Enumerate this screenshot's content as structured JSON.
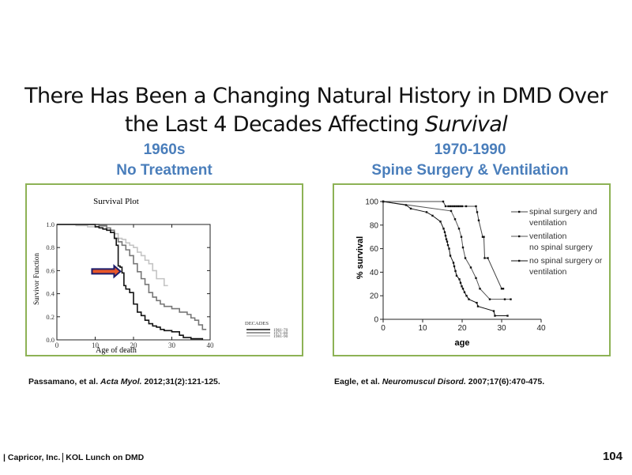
{
  "slide": {
    "title_line1": "There Has Been a Changing Natural History in DMD Over",
    "title_line2_prefix": "the Last 4 Decades Affecting ",
    "title_line2_italic": "Survival",
    "left_heading": {
      "line1": "1960s",
      "line2": "No Treatment"
    },
    "right_heading": {
      "line1": "1970-1990",
      "line2": "Spine Surgery & Ventilation"
    },
    "left_citation": {
      "authors": "Passamano, et al. ",
      "journal": "Acta Myol.",
      "details": " 2012;31(2):121-125."
    },
    "right_citation": {
      "authors": "Eagle, et al.  ",
      "journal": "Neuromuscul Disord.",
      "details": " 2007;17(6):470-475."
    },
    "footer": {
      "company": "| Capricor, Inc. ",
      "event": "KOL Lunch on DMD",
      "page_number": "104"
    },
    "colors": {
      "heading_blue": "#4a7ebb",
      "panel_border": "#8db255",
      "arrow_fill": "#e8572a",
      "arrow_outline": "#1d1d6b"
    }
  },
  "chart_data": [
    {
      "type": "line",
      "style": "step",
      "title": "Survival Plot",
      "xlabel": "Age of death",
      "ylabel": "Survivor Function",
      "xlim": [
        0,
        40
      ],
      "ylim": [
        0,
        1.0
      ],
      "xticks": [
        "0",
        "10",
        "20",
        "30",
        "40"
      ],
      "yticks": [
        "0.0",
        "0.2",
        "0.4",
        "0.6",
        "0.8",
        "1.0"
      ],
      "legend_title": "DECADES",
      "legend_position": "bottom-right-outside",
      "annotation": {
        "type": "arrow",
        "points_to": [
          17,
          0.58
        ]
      },
      "series": [
        {
          "name": "1961-70",
          "color": "#111111",
          "x": [
            0,
            10,
            11,
            12,
            13,
            14,
            15,
            15.5,
            16,
            16.5,
            17,
            17.5,
            18,
            19,
            20,
            21,
            22,
            23,
            24,
            25,
            26,
            27,
            28,
            30,
            32,
            33,
            35,
            38
          ],
          "y": [
            1.0,
            0.98,
            0.97,
            0.96,
            0.95,
            0.93,
            0.88,
            0.82,
            0.64,
            0.63,
            0.58,
            0.47,
            0.44,
            0.41,
            0.31,
            0.24,
            0.21,
            0.17,
            0.14,
            0.12,
            0.11,
            0.09,
            0.08,
            0.07,
            0.04,
            0.02,
            0.01,
            0.0
          ]
        },
        {
          "name": "1971-80",
          "color": "#777777",
          "x": [
            0,
            11,
            13,
            14,
            15,
            16,
            17,
            18,
            19,
            20,
            21,
            22,
            23,
            24,
            25,
            26,
            27,
            28,
            30,
            32,
            34,
            35,
            36,
            37,
            38,
            39
          ],
          "y": [
            1.0,
            0.99,
            0.97,
            0.95,
            0.88,
            0.85,
            0.82,
            0.78,
            0.73,
            0.66,
            0.59,
            0.53,
            0.48,
            0.41,
            0.37,
            0.34,
            0.31,
            0.29,
            0.27,
            0.24,
            0.22,
            0.19,
            0.17,
            0.13,
            0.09,
            0.09
          ]
        },
        {
          "name": "1981-90",
          "color": "#c4c4c4",
          "x": [
            0,
            5,
            8,
            13,
            15,
            16,
            17,
            18,
            19,
            20,
            21,
            22,
            23,
            24,
            25,
            26,
            28,
            29
          ],
          "y": [
            1.0,
            0.99,
            0.98,
            0.95,
            0.92,
            0.88,
            0.87,
            0.84,
            0.82,
            0.8,
            0.76,
            0.73,
            0.69,
            0.66,
            0.6,
            0.53,
            0.47,
            0.47
          ]
        }
      ]
    },
    {
      "type": "line",
      "style": "markers",
      "title": "",
      "xlabel": "age",
      "ylabel": "% survival",
      "xlim": [
        0,
        40
      ],
      "ylim": [
        0,
        100
      ],
      "xticks": [
        "0",
        "10",
        "20",
        "30",
        "40"
      ],
      "yticks": [
        "0",
        "20",
        "40",
        "60",
        "80",
        "100"
      ],
      "legend_position": "right",
      "series": [
        {
          "name": "spinal surgery and ventilation",
          "legend_lines": [
            "spinal surgery and",
            "ventilation"
          ],
          "color": "#444444",
          "x": [
            0,
            15.2,
            15.8,
            16.5,
            17,
            17.5,
            18,
            18.5,
            19,
            19.5,
            20,
            21,
            23.5,
            23.8,
            24.2,
            25.2,
            25.5,
            25.7,
            26.5,
            30,
            30.4
          ],
          "y": [
            100,
            100,
            96,
            96,
            96,
            96,
            96,
            96,
            96,
            96,
            96,
            96,
            96,
            91,
            84,
            70,
            70,
            52,
            52,
            26,
            26
          ]
        },
        {
          "name": "ventilation no spinal surgery",
          "legend_lines": [
            "ventilation",
            "no spinal surgery"
          ],
          "color": "#555555",
          "x": [
            0,
            17.2,
            18.2,
            19.2,
            19.8,
            20.2,
            20.8,
            22.2,
            23.5,
            24.5,
            27,
            30.8,
            32.3
          ],
          "y": [
            100,
            92,
            85,
            77,
            70,
            61,
            52,
            44,
            35,
            26,
            17,
            17,
            17
          ]
        },
        {
          "name": "no spinal surgery or ventilation",
          "legend_lines": [
            "no spinal surgery or",
            "ventilation"
          ],
          "color": "#111111",
          "x": [
            0,
            5.8,
            7,
            11,
            12.5,
            14.5,
            15.3,
            15.6,
            15.8,
            16,
            16.2,
            16.4,
            16.7,
            17,
            17.8,
            18,
            18.3,
            18.6,
            19.3,
            19.6,
            19.9,
            20.2,
            20.6,
            21.1,
            21.7,
            23.7,
            24,
            28,
            28.3,
            31.5
          ],
          "y": [
            100,
            97,
            94,
            91,
            88,
            83,
            77,
            74,
            71,
            68,
            66,
            63,
            60,
            54,
            48,
            45,
            41,
            37,
            34,
            31,
            28,
            26,
            23,
            20,
            17,
            14,
            11,
            7,
            3,
            3
          ]
        }
      ]
    }
  ]
}
